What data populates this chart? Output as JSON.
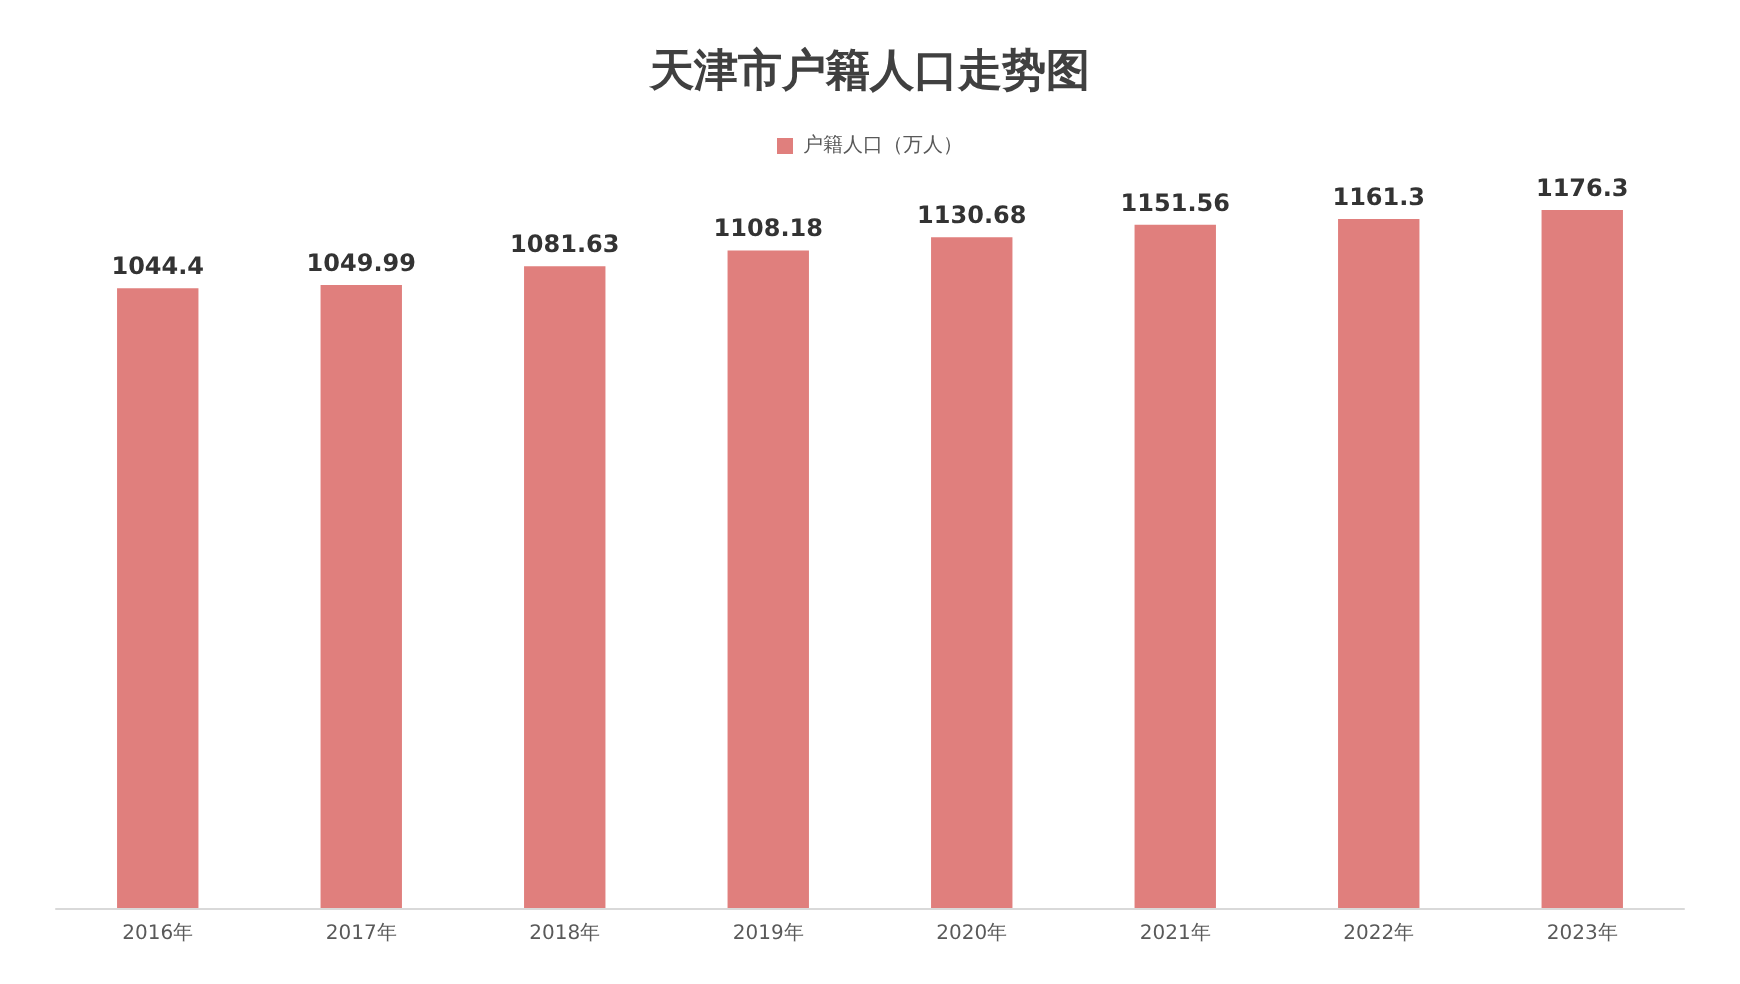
{
  "chart_data": {
    "type": "bar",
    "title": "天津市户籍人口走势图",
    "categories": [
      "2016年",
      "2017年",
      "2018年",
      "2019年",
      "2020年",
      "2021年",
      "2022年",
      "2023年"
    ],
    "series": [
      {
        "name": "户籍人口（万人）",
        "color": "#e07f7d",
        "values": [
          1044.4,
          1049.99,
          1081.63,
          1108.18,
          1130.68,
          1151.56,
          1161.3,
          1176.3
        ]
      }
    ],
    "tick_labels": "x",
    "data_labels": true,
    "legend": "top",
    "grid": false
  }
}
